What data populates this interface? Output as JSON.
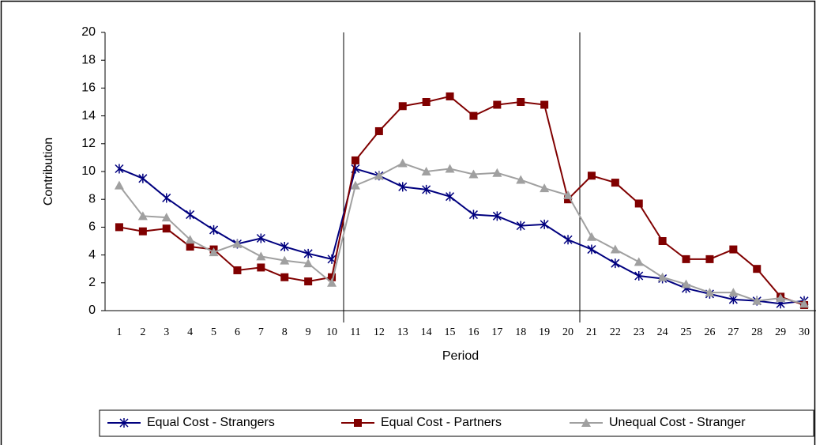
{
  "chart_data": {
    "type": "line",
    "xlabel": "Period",
    "ylabel": "Contribution",
    "categories": [
      1,
      2,
      3,
      4,
      5,
      6,
      7,
      8,
      9,
      10,
      11,
      12,
      13,
      14,
      15,
      16,
      17,
      18,
      19,
      20,
      21,
      22,
      23,
      24,
      25,
      26,
      27,
      28,
      29,
      30
    ],
    "series": [
      {
        "name": "Equal Cost - Strangers",
        "color": "#00007f",
        "marker": "asterisk",
        "values": [
          10.2,
          9.5,
          8.1,
          6.9,
          5.8,
          4.8,
          5.2,
          4.6,
          4.1,
          3.7,
          10.2,
          9.7,
          8.9,
          8.7,
          8.2,
          6.9,
          6.8,
          6.1,
          6.2,
          5.1,
          4.4,
          3.4,
          2.5,
          2.3,
          1.6,
          1.2,
          0.8,
          0.7,
          0.5,
          0.7
        ]
      },
      {
        "name": "Equal Cost - Partners",
        "color": "#800000",
        "marker": "square",
        "values": [
          6.0,
          5.7,
          5.9,
          4.6,
          4.4,
          2.9,
          3.1,
          2.4,
          2.1,
          2.4,
          10.8,
          12.9,
          14.7,
          15.0,
          15.4,
          14.0,
          14.8,
          15.0,
          14.8,
          8.0,
          9.7,
          9.2,
          7.7,
          5.0,
          3.7,
          3.7,
          4.4,
          3.0,
          1.0,
          0.4
        ]
      },
      {
        "name": "Unequal Cost - Stranger",
        "color": "#a0a0a0",
        "marker": "triangle",
        "values": [
          9.0,
          6.8,
          6.7,
          5.1,
          4.2,
          4.8,
          3.9,
          3.6,
          3.4,
          2.0,
          9.0,
          9.7,
          10.6,
          10.0,
          10.2,
          9.8,
          9.9,
          9.4,
          8.8,
          8.3,
          5.3,
          4.4,
          3.5,
          2.4,
          1.9,
          1.3,
          1.3,
          0.7,
          0.9,
          0.5
        ]
      }
    ],
    "ylim": [
      0,
      20
    ],
    "yticks": [
      0,
      2,
      4,
      6,
      8,
      10,
      12,
      14,
      16,
      18,
      20
    ],
    "grid": false,
    "legend": "bottom"
  }
}
